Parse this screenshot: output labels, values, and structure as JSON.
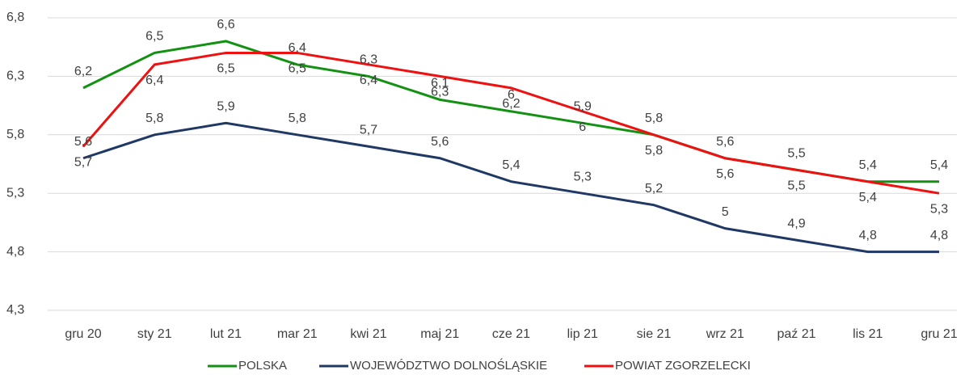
{
  "chart_data": {
    "type": "line",
    "categories": [
      "gru 20",
      "sty 21",
      "lut 21",
      "mar 21",
      "kwi 21",
      "maj 21",
      "cze 21",
      "lip 21",
      "sie 21",
      "wrz 21",
      "paź 21",
      "lis 21",
      "gru 21"
    ],
    "series": [
      {
        "name": "POLSKA",
        "color": "#129112",
        "values": [
          6.2,
          6.5,
          6.6,
          6.4,
          6.3,
          6.1,
          6,
          5.9,
          5.8,
          5.6,
          5.5,
          5.4,
          5.4
        ],
        "value_labels": [
          "6,2",
          "6,5",
          "6,6",
          "6,4",
          "6,3",
          "6,1",
          "6",
          "5,9",
          "5,8",
          "5,6",
          "5,5",
          "5,4",
          "5,4"
        ]
      },
      {
        "name": "WOJEWÓDZTWO DOLNOŚLĄSKIE",
        "color": "#1f3864",
        "values": [
          5.6,
          5.8,
          5.9,
          5.8,
          5.7,
          5.6,
          5.4,
          5.3,
          5.2,
          5,
          4.9,
          4.8,
          4.8
        ],
        "value_labels": [
          "5,6",
          "5,8",
          "5,9",
          "5,8",
          "5,7",
          "5,6",
          "5,4",
          "5,3",
          "5,2",
          "5",
          "4,9",
          "4,8",
          "4,8"
        ]
      },
      {
        "name": "POWIAT ZGORZELECKI",
        "color": "#ee1111",
        "values": [
          5.7,
          6.4,
          6.5,
          6.5,
          6.4,
          6.3,
          6.2,
          6,
          5.8,
          5.6,
          5.5,
          5.4,
          5.3
        ],
        "value_labels": [
          "5,7",
          "6,4",
          "6,5",
          "6,5",
          "6,4",
          "6,3",
          "6,2",
          "6",
          "5,8",
          "5,6",
          "5,5",
          "5,4",
          "5,3"
        ]
      }
    ],
    "ylim": [
      4.3,
      6.8
    ],
    "yticks": [
      {
        "value": 4.3,
        "label": "4,3"
      },
      {
        "value": 4.8,
        "label": "4,8"
      },
      {
        "value": 5.3,
        "label": "5,3"
      },
      {
        "value": 5.8,
        "label": "5,8"
      },
      {
        "value": 6.3,
        "label": "6,3"
      },
      {
        "value": 6.8,
        "label": "6,8"
      }
    ],
    "grid": true,
    "legend": "bottom"
  }
}
